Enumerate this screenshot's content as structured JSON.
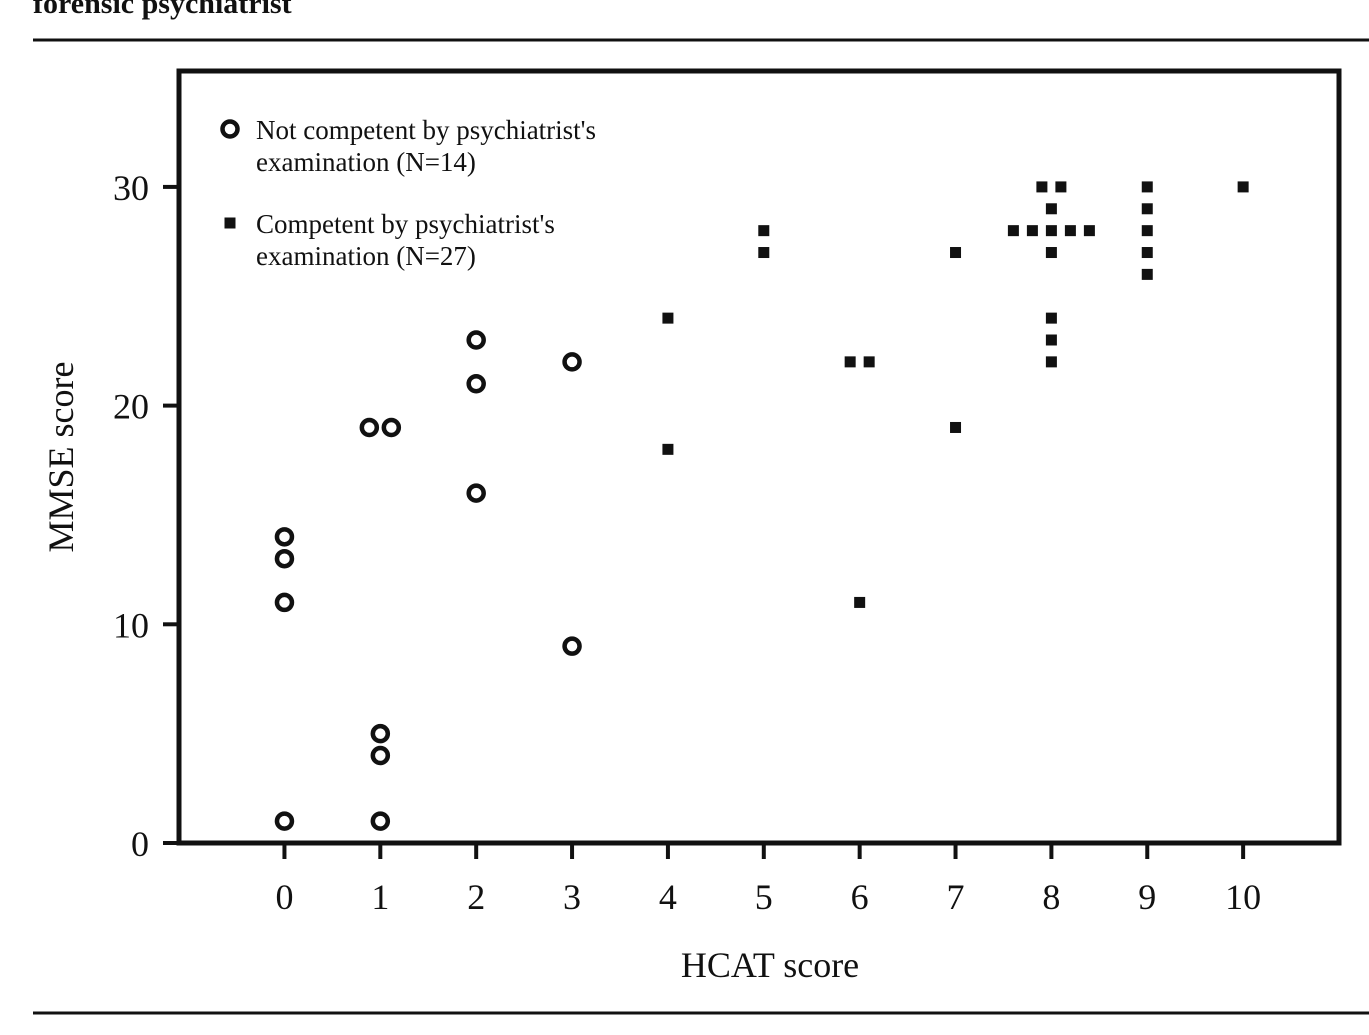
{
  "caption_fragment": "forensic psychiatrist",
  "colors": {
    "ink": "#111111",
    "background": "#ffffff"
  },
  "chart_data": {
    "type": "scatter",
    "xlabel": "HCAT score",
    "ylabel": "MMSE score",
    "xlim": [
      -1.1,
      11.0
    ],
    "ylim": [
      0,
      35.3
    ],
    "x_ticks": [
      0,
      1,
      2,
      3,
      4,
      5,
      6,
      7,
      8,
      9,
      10
    ],
    "y_ticks": [
      0,
      10,
      20,
      30
    ],
    "grid": false,
    "legend_position": "top-left",
    "series": [
      {
        "name_lines": [
          "Not competent by psychiatrist's",
          "examination (N=14)"
        ],
        "marker": "open-circle",
        "points": [
          {
            "x": 0,
            "y": 14
          },
          {
            "x": 0,
            "y": 13
          },
          {
            "x": 0,
            "y": 11
          },
          {
            "x": 0,
            "y": 1
          },
          {
            "x": 1,
            "y": 19
          },
          {
            "x": 1,
            "y": 19
          },
          {
            "x": 1,
            "y": 5
          },
          {
            "x": 1,
            "y": 4
          },
          {
            "x": 1,
            "y": 1
          },
          {
            "x": 2,
            "y": 23
          },
          {
            "x": 2,
            "y": 21
          },
          {
            "x": 2,
            "y": 16
          },
          {
            "x": 3,
            "y": 22
          },
          {
            "x": 3,
            "y": 9
          }
        ]
      },
      {
        "name_lines": [
          "Competent by psychiatrist's",
          "examination (N=27)"
        ],
        "marker": "filled-square",
        "points": [
          {
            "x": 4,
            "y": 24
          },
          {
            "x": 4,
            "y": 18
          },
          {
            "x": 5,
            "y": 28
          },
          {
            "x": 5,
            "y": 27
          },
          {
            "x": 6,
            "y": 22
          },
          {
            "x": 6,
            "y": 22
          },
          {
            "x": 6,
            "y": 11
          },
          {
            "x": 7,
            "y": 27
          },
          {
            "x": 7,
            "y": 19
          },
          {
            "x": 8,
            "y": 30
          },
          {
            "x": 8,
            "y": 30
          },
          {
            "x": 8,
            "y": 29
          },
          {
            "x": 8,
            "y": 28
          },
          {
            "x": 8,
            "y": 28
          },
          {
            "x": 8,
            "y": 28
          },
          {
            "x": 8,
            "y": 28
          },
          {
            "x": 8,
            "y": 28
          },
          {
            "x": 8,
            "y": 27
          },
          {
            "x": 8,
            "y": 24
          },
          {
            "x": 8,
            "y": 23
          },
          {
            "x": 8,
            "y": 22
          },
          {
            "x": 9,
            "y": 30
          },
          {
            "x": 9,
            "y": 29
          },
          {
            "x": 9,
            "y": 28
          },
          {
            "x": 9,
            "y": 27
          },
          {
            "x": 9,
            "y": 26
          },
          {
            "x": 10,
            "y": 30
          }
        ]
      }
    ]
  }
}
